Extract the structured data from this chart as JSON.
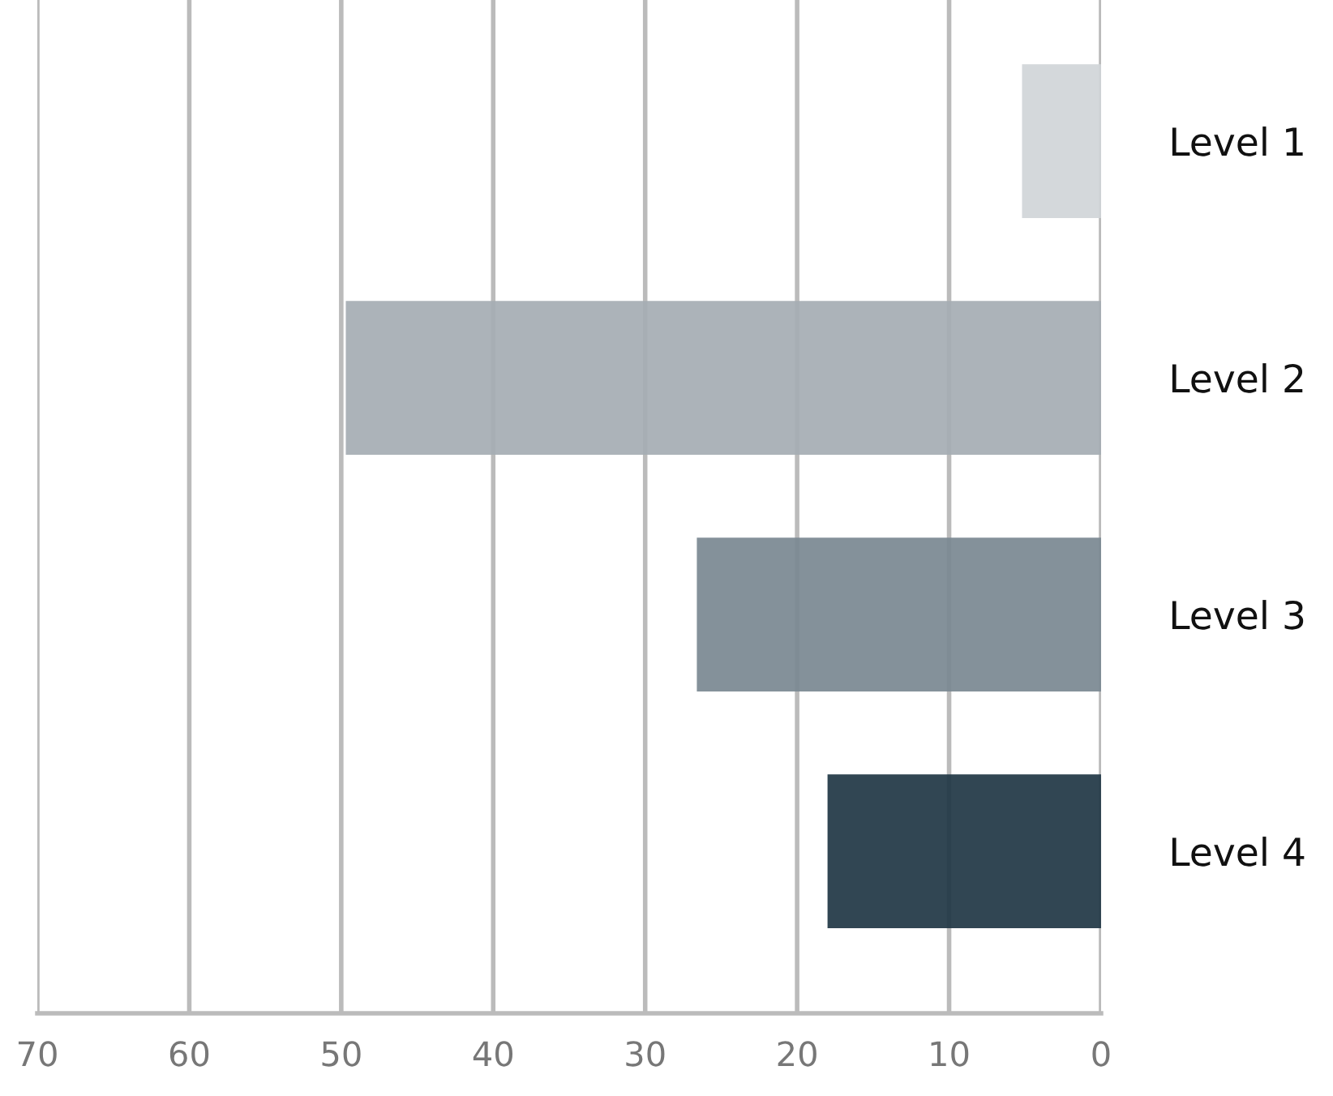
{
  "chart_data": {
    "type": "bar",
    "orientation": "horizontal",
    "categories": [
      "Level 1",
      "Level 2",
      "Level 3",
      "Level 4"
    ],
    "values": [
      5.2,
      49.7,
      26.6,
      18.0
    ],
    "colors": [
      "#d0d5d8",
      "#a5adb3",
      "#798891",
      "#1f3644"
    ],
    "xlim": [
      70,
      0
    ],
    "xticks": [
      70,
      60,
      50,
      40,
      30,
      20,
      10,
      0
    ],
    "grid": "x",
    "legend": false
  }
}
